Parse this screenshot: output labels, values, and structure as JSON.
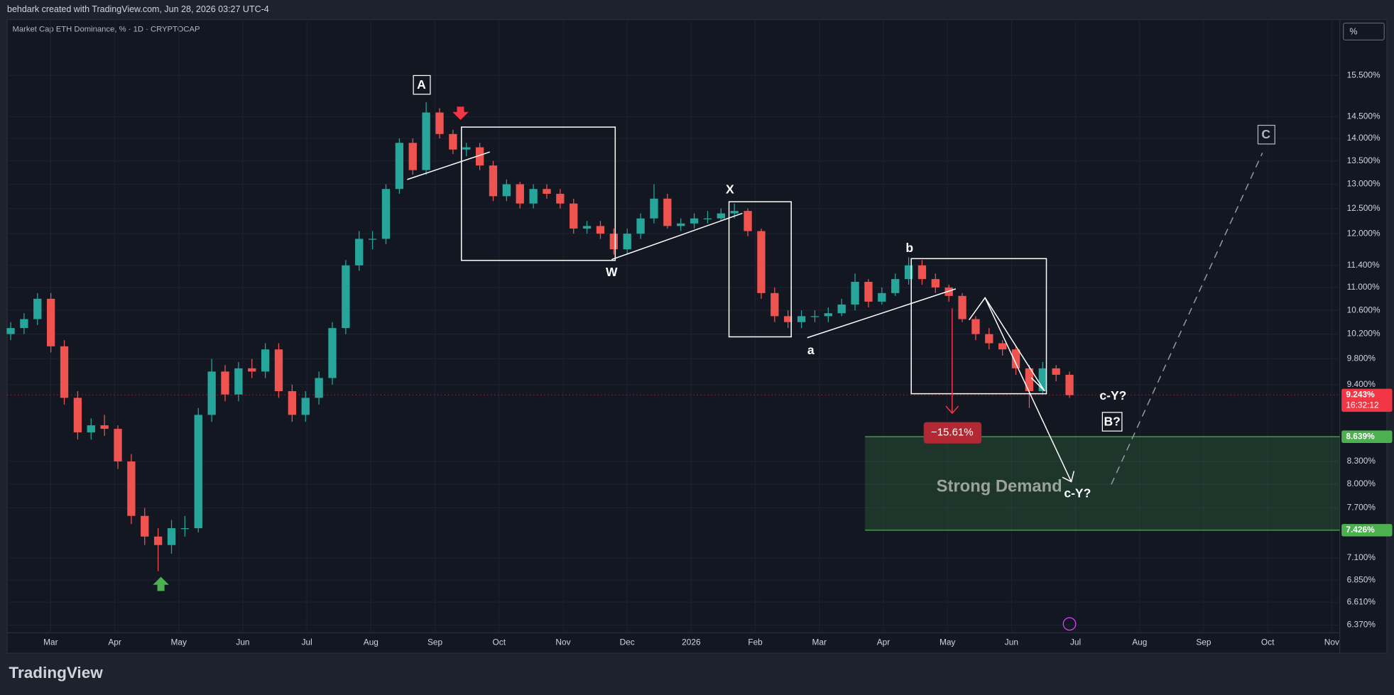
{
  "header": {
    "credit": "behdark created with TradingView.com, Jun 28, 2026 03:27 UTC-4",
    "symbol": "Market Cap ETH Dominance, % · 1D · CRYPTOCAP",
    "scale_button": "%",
    "logo": "TradingView"
  },
  "chart_data": {
    "type": "candlestick",
    "log_scale": true,
    "grid": true,
    "up_color": "#26a69a",
    "down_color": "#ef5350",
    "ylim": [
      6.29,
      16.97
    ],
    "yticks": [
      {
        "value": 15.5,
        "label": "15.500%"
      },
      {
        "value": 14.5,
        "label": "14.500%"
      },
      {
        "value": 14,
        "label": "14.000%"
      },
      {
        "value": 13.5,
        "label": "13.500%"
      },
      {
        "value": 13,
        "label": "13.000%"
      },
      {
        "value": 12.5,
        "label": "12.500%"
      },
      {
        "value": 12,
        "label": "12.000%"
      },
      {
        "value": 11.4,
        "label": "11.400%"
      },
      {
        "value": 11,
        "label": "11.000%"
      },
      {
        "value": 10.6,
        "label": "10.600%"
      },
      {
        "value": 10.2,
        "label": "10.200%"
      },
      {
        "value": 9.8,
        "label": "9.800%"
      },
      {
        "value": 9.4,
        "label": "9.400%"
      },
      {
        "value": 8.3,
        "label": "8.300%"
      },
      {
        "value": 8,
        "label": "8.000%"
      },
      {
        "value": 7.7,
        "label": "7.700%"
      },
      {
        "value": 7.1,
        "label": "7.100%"
      },
      {
        "value": 6.85,
        "label": "6.850%"
      },
      {
        "value": 6.61,
        "label": "6.610%"
      },
      {
        "value": 6.37,
        "label": "6.370%"
      }
    ],
    "x_labels": [
      "Mar",
      "Apr",
      "May",
      "Jun",
      "Jul",
      "Aug",
      "Sep",
      "Oct",
      "Nov",
      "Dec",
      "2026",
      "Feb",
      "Mar",
      "Apr",
      "May",
      "Jun",
      "Jul",
      "Aug",
      "Sep",
      "Oct",
      "Nov"
    ],
    "open": [
      10.2,
      10.3,
      10.45,
      10.8,
      10.0,
      9.2,
      8.7,
      8.8,
      8.75,
      8.3,
      7.6,
      7.35,
      7.25,
      7.45,
      7.45,
      8.95,
      9.6,
      9.25,
      9.65,
      9.6,
      9.95,
      9.3,
      8.95,
      9.2,
      9.5,
      10.3,
      11.4,
      11.9,
      11.9,
      12.9,
      13.9,
      13.3,
      14.6,
      14.1,
      13.75,
      13.8,
      13.4,
      12.75,
      13.0,
      12.6,
      12.9,
      12.8,
      12.6,
      12.1,
      12.15,
      12.0,
      11.7,
      12.0,
      12.3,
      12.7,
      12.15,
      12.2,
      12.3,
      12.3,
      12.4,
      12.45,
      12.05,
      10.9,
      10.5,
      10.4,
      10.5,
      10.5,
      10.55,
      10.7,
      11.1,
      10.75,
      10.9,
      11.15,
      11.4,
      11.15,
      11.0,
      10.85,
      10.45,
      10.2,
      10.05,
      9.95,
      9.65,
      9.3,
      9.65,
      9.55
    ],
    "high": [
      10.4,
      10.55,
      10.9,
      10.9,
      10.1,
      9.3,
      8.9,
      8.95,
      8.8,
      8.4,
      7.7,
      7.45,
      7.55,
      7.6,
      9.05,
      9.8,
      9.7,
      9.75,
      9.8,
      10.05,
      10.05,
      9.4,
      9.3,
      9.6,
      10.4,
      11.5,
      12.05,
      12.05,
      13.0,
      14.0,
      14.0,
      14.85,
      14.7,
      14.2,
      13.9,
      13.9,
      13.5,
      13.1,
      13.05,
      13.0,
      13.0,
      12.9,
      12.7,
      12.25,
      12.25,
      12.1,
      12.1,
      12.4,
      13.0,
      12.8,
      12.3,
      12.4,
      12.45,
      12.5,
      12.6,
      12.5,
      12.1,
      11.0,
      10.6,
      10.6,
      10.6,
      10.65,
      10.8,
      11.25,
      11.15,
      11.0,
      11.25,
      11.55,
      11.5,
      11.25,
      11.05,
      10.9,
      10.5,
      10.3,
      10.1,
      10.0,
      9.7,
      9.75,
      9.7,
      9.6
    ],
    "low": [
      10.1,
      10.2,
      10.35,
      9.9,
      9.1,
      8.6,
      8.6,
      8.65,
      8.2,
      7.5,
      7.25,
      6.95,
      7.15,
      7.35,
      7.4,
      8.85,
      9.15,
      9.15,
      9.5,
      9.5,
      9.2,
      8.85,
      8.85,
      9.1,
      9.4,
      10.2,
      11.3,
      11.7,
      11.8,
      12.8,
      13.2,
      13.2,
      14.0,
      13.65,
      13.6,
      13.3,
      12.65,
      12.65,
      12.5,
      12.5,
      12.7,
      12.5,
      12.0,
      12.0,
      11.9,
      11.6,
      11.6,
      11.9,
      12.2,
      12.1,
      12.05,
      12.1,
      12.2,
      12.25,
      12.3,
      11.95,
      10.8,
      10.4,
      10.3,
      10.3,
      10.4,
      10.4,
      10.5,
      10.6,
      10.65,
      10.7,
      10.85,
      11.05,
      11.05,
      10.9,
      10.75,
      10.4,
      10.1,
      9.95,
      9.85,
      9.55,
      9.05,
      9.25,
      9.45,
      9.2
    ],
    "close": [
      10.3,
      10.45,
      10.8,
      10.0,
      9.2,
      8.7,
      8.8,
      8.75,
      8.3,
      7.6,
      7.35,
      7.25,
      7.45,
      7.45,
      8.95,
      9.6,
      9.25,
      9.65,
      9.6,
      9.95,
      9.3,
      8.95,
      9.2,
      9.5,
      10.3,
      11.4,
      11.9,
      11.9,
      12.9,
      13.9,
      13.3,
      14.6,
      14.1,
      13.75,
      13.8,
      13.4,
      12.75,
      13.0,
      12.6,
      12.9,
      12.8,
      12.6,
      12.1,
      12.15,
      12.0,
      11.7,
      12.0,
      12.3,
      12.7,
      12.15,
      12.2,
      12.3,
      12.3,
      12.4,
      12.45,
      12.05,
      10.9,
      10.5,
      10.4,
      10.5,
      10.5,
      10.55,
      10.7,
      11.1,
      10.75,
      10.9,
      11.15,
      11.4,
      11.15,
      11.0,
      10.85,
      10.45,
      10.2,
      10.05,
      9.95,
      9.65,
      9.3,
      9.65,
      9.55,
      9.24
    ],
    "last_price": {
      "value": 9.243,
      "label": "9.243%"
    },
    "last_price_color": "#f23645",
    "countdown": "16:32:12",
    "zone": {
      "label": "Strong Demand",
      "top": {
        "value": 8.639,
        "label": "8.639%"
      },
      "bottom": {
        "value": 7.426,
        "label": "7.426%"
      },
      "color": "#4caf50"
    },
    "annotations": [
      "A",
      "W",
      "X",
      "a",
      "b",
      "c-Y?",
      "B?",
      "C",
      "c-Y?",
      "−15.61%"
    ]
  }
}
